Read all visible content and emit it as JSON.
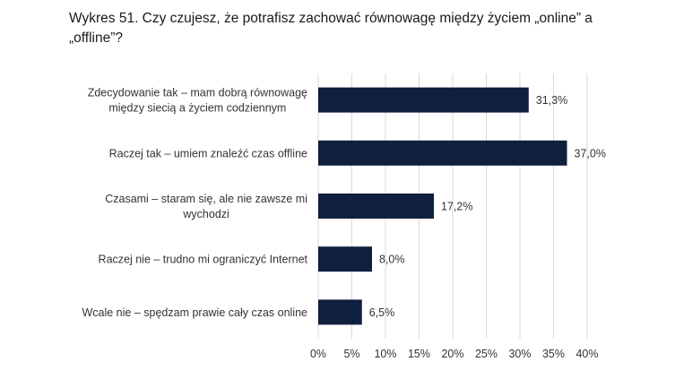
{
  "chart_data": {
    "type": "bar",
    "orientation": "horizontal",
    "title": "Wykres 51. Czy czujesz, że potrafisz zachować równowagę między życiem „online” a „offline”?",
    "categories": [
      [
        "Zdecydowanie tak – mam dobrą równowagę",
        "między siecią a życiem codziennym"
      ],
      [
        "Raczej tak – umiem znaleźć czas offline"
      ],
      [
        "Czasami – staram się, ale nie zawsze mi",
        "wychodzi"
      ],
      [
        "Raczej nie – trudno mi ograniczyć Internet"
      ],
      [
        "Wcale nie – spędzam prawie cały czas online"
      ]
    ],
    "values": [
      31.3,
      37.0,
      17.2,
      8.0,
      6.5
    ],
    "value_labels": [
      "31,3%",
      "37,0%",
      "17,2%",
      "8,0%",
      "6,5%"
    ],
    "xlim": [
      0,
      40
    ],
    "xticks": [
      "0%",
      "5%",
      "10%",
      "15%",
      "20%",
      "25%",
      "30%",
      "35%",
      "40%"
    ],
    "grid": true,
    "bar_color": "#0f1f3d",
    "grid_color": "#d9d9d9"
  }
}
